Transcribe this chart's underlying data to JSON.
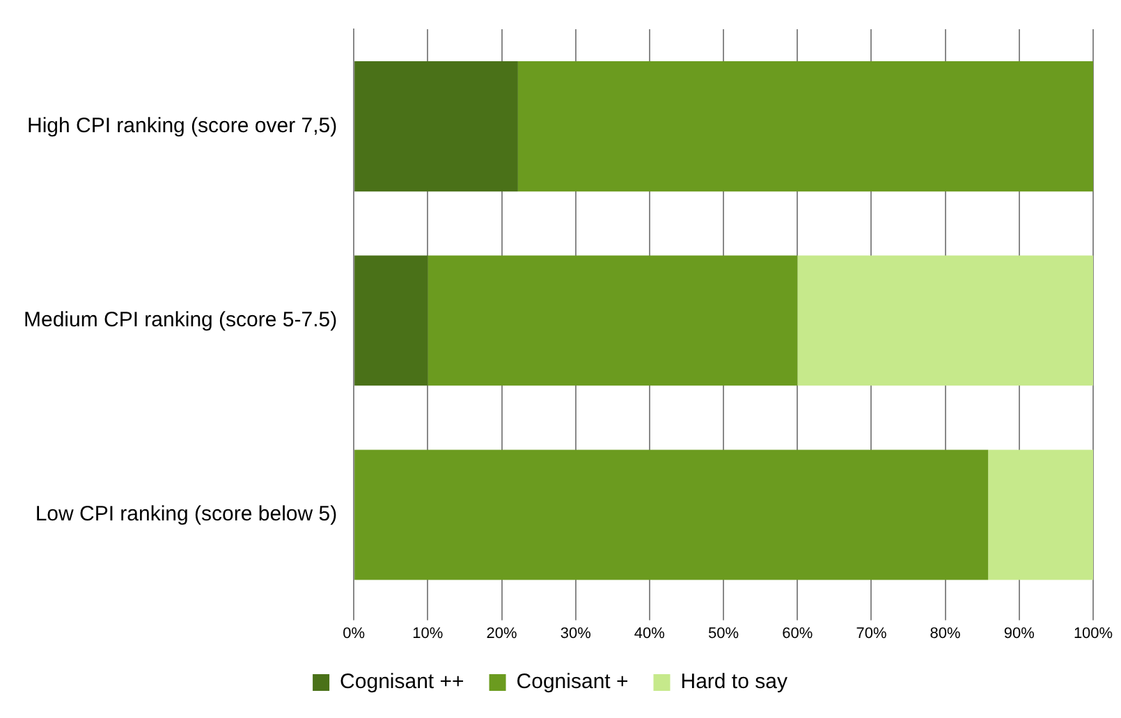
{
  "chart_data": {
    "type": "bar",
    "orientation": "horizontal",
    "stacked": true,
    "categories": [
      "High CPI ranking (score over 7,5)",
      "Medium CPI ranking (score 5-7.5)",
      "Low CPI ranking (score below 5)"
    ],
    "series": [
      {
        "name": "Cognisant ++",
        "color": "#4a7118",
        "values": [
          22.2,
          10,
          0
        ]
      },
      {
        "name": "Cognisant +",
        "color": "#6b9b1f",
        "values": [
          77.8,
          50,
          85.8
        ]
      },
      {
        "name": "Hard to say",
        "color": "#c6e98b",
        "values": [
          0,
          40,
          14.2
        ]
      }
    ],
    "xlim": [
      0,
      100
    ],
    "xticks": [
      {
        "value": 0,
        "label": "0%"
      },
      {
        "value": 10,
        "label": "10%"
      },
      {
        "value": 20,
        "label": "20%"
      },
      {
        "value": 30,
        "label": "30%"
      },
      {
        "value": 40,
        "label": "40%"
      },
      {
        "value": 50,
        "label": "50%"
      },
      {
        "value": 60,
        "label": "60%"
      },
      {
        "value": 70,
        "label": "70%"
      },
      {
        "value": 80,
        "label": "80%"
      },
      {
        "value": 90,
        "label": "90%"
      },
      {
        "value": 100,
        "label": "100%"
      }
    ],
    "grid": "x",
    "legend": "bottom"
  }
}
